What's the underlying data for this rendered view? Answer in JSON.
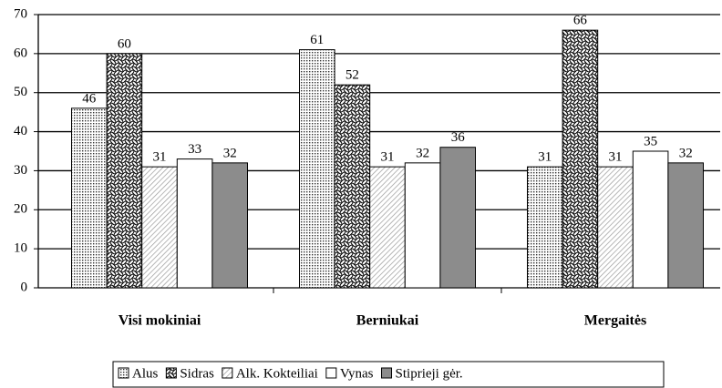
{
  "chart_data": {
    "type": "bar",
    "categories": [
      "Visi mokiniai",
      "Berniukai",
      "Mergaitės"
    ],
    "series": [
      {
        "name": "Alus",
        "color": "#d8d8d8",
        "pattern": "dots",
        "values": [
          46,
          61,
          31
        ]
      },
      {
        "name": "Sidras",
        "color": "#ffffff",
        "pattern": "waves",
        "values": [
          60,
          52,
          66
        ]
      },
      {
        "name": "Alk. Kokteiliai",
        "color": "#ffffff",
        "pattern": "hatch",
        "values": [
          31,
          31,
          31
        ]
      },
      {
        "name": "Vynas",
        "color": "#ffffff",
        "pattern": "none",
        "values": [
          33,
          32,
          35
        ]
      },
      {
        "name": "Stiprieji gėr.",
        "color": "#8c8c8c",
        "pattern": "none",
        "values": [
          32,
          36,
          32
        ]
      }
    ],
    "ylim": [
      0,
      70
    ],
    "yticks": [
      0,
      10,
      20,
      30,
      40,
      50,
      60,
      70
    ],
    "grid": true,
    "legend": "bottom"
  }
}
